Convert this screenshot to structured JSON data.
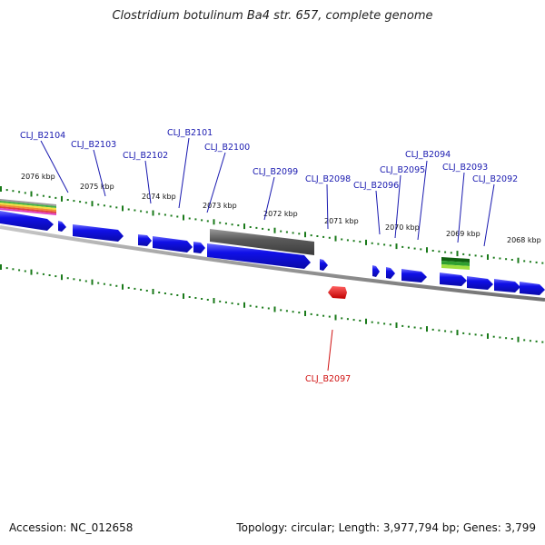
{
  "title": "Clostridium botulinum Ba4 str. 657, complete genome",
  "accession": "Accession: NC_012658",
  "topology": "Topology: circular; Length: 3,977,794 bp; Genes: 3,799",
  "scale_labels": [
    "2076 kbp",
    "2075 kbp",
    "2074 kbp",
    "2073 kbp",
    "2072 kbp",
    "2071 kbp",
    "2070 kbp",
    "2069 kbp",
    "2068 kbp"
  ],
  "genes_forward": [
    "CLJ_B2104",
    "CLJ_B2103",
    "CLJ_B2102",
    "CLJ_B2101",
    "CLJ_B2100",
    "CLJ_B2099",
    "CLJ_B2098",
    "CLJ_B2096",
    "CLJ_B2095",
    "CLJ_B2094",
    "CLJ_B2093",
    "CLJ_B2092"
  ],
  "genes_reverse": [
    "CLJ_B2097"
  ],
  "colors": {
    "gene": "#1010e8",
    "reverse_gene": "#e01010",
    "tick": "#1a7a1a",
    "backbone": "#888888",
    "label": "#1a1ab0",
    "reverse_label": "#d01010"
  }
}
